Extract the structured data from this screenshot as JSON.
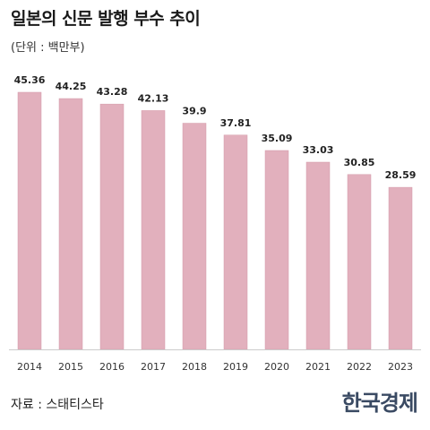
{
  "header": {
    "title": "일본의 신문 발행 부수 추이",
    "unit": "(단위 : 백만부)"
  },
  "footer": {
    "source": "자료 : 스태티스타",
    "logo": "한국경제"
  },
  "colors": {
    "bar_fill": "#e2b0bd",
    "bar_stroke": "#d49aa9",
    "axis": "#cccccc"
  },
  "chart_data": {
    "type": "bar",
    "title": "일본의 신문 발행 부수 추이",
    "ylabel": "(단위 : 백만부)",
    "categories": [
      "2014",
      "2015",
      "2016",
      "2017",
      "2018",
      "2019",
      "2020",
      "2021",
      "2022",
      "2023"
    ],
    "values": [
      45.36,
      44.25,
      43.28,
      42.13,
      39.9,
      37.81,
      35.09,
      33.03,
      30.85,
      28.59
    ],
    "data_labels": [
      "45.36",
      "44.25",
      "43.28",
      "42.13",
      "39.9",
      "37.81",
      "35.09",
      "33.03",
      "30.85",
      "28.59"
    ],
    "ylim": [
      0,
      45.36
    ],
    "grid": false,
    "legend": "none"
  }
}
